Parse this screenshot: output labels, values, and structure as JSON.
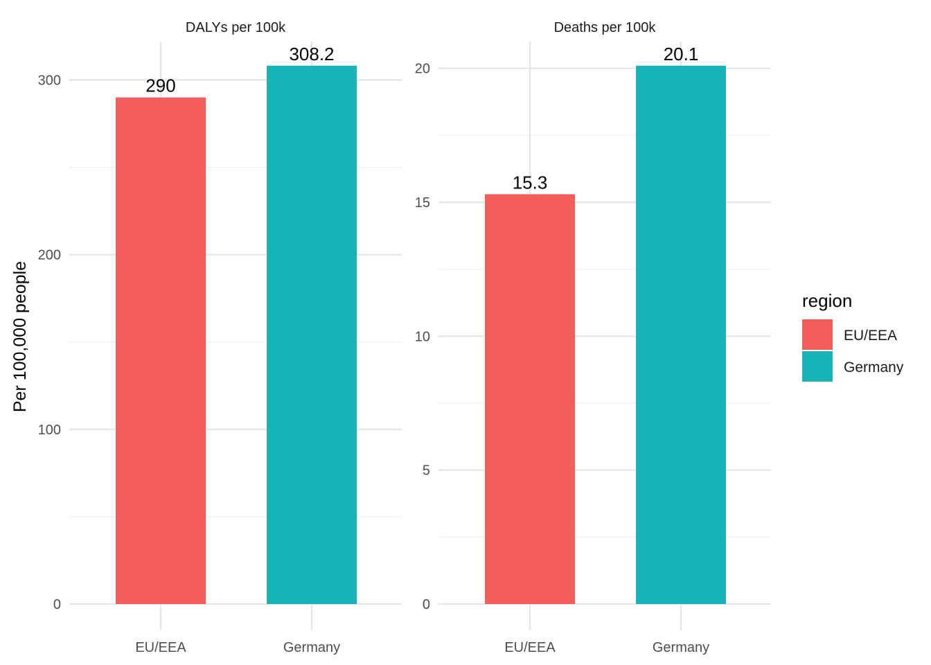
{
  "chart_data": [
    {
      "type": "bar",
      "title": "DALYs per 100k",
      "categories": [
        "EU/EEA",
        "Germany"
      ],
      "values": [
        290,
        308.2
      ],
      "value_labels": [
        "290",
        "308.2"
      ],
      "yticks": [
        0,
        100,
        200,
        300
      ],
      "ytick_labels": [
        "0",
        "100",
        "200",
        "300"
      ],
      "ylim": [
        0,
        322
      ],
      "ylabel": "Per 100,000 people",
      "grid": true
    },
    {
      "type": "bar",
      "title": "Deaths per 100k",
      "categories": [
        "EU/EEA",
        "Germany"
      ],
      "values": [
        15.3,
        20.1
      ],
      "value_labels": [
        "15.3",
        "20.1"
      ],
      "yticks": [
        0,
        5,
        10,
        15,
        20
      ],
      "ytick_labels": [
        "0",
        "5",
        "10",
        "15",
        "20"
      ],
      "ylim": [
        0,
        21
      ],
      "grid": true
    }
  ],
  "legend": {
    "title": "region",
    "placement": "right",
    "items": [
      {
        "label": "EU/EEA",
        "color": "#F8766D"
      },
      {
        "label": "Germany",
        "color": "#00BFC4"
      }
    ]
  },
  "colors": {
    "EU/EEA": "#F35E5A",
    "Germany": "#19B4B8",
    "grid_major": "#e5e5e5",
    "grid_minor": "#f0f0f0"
  }
}
